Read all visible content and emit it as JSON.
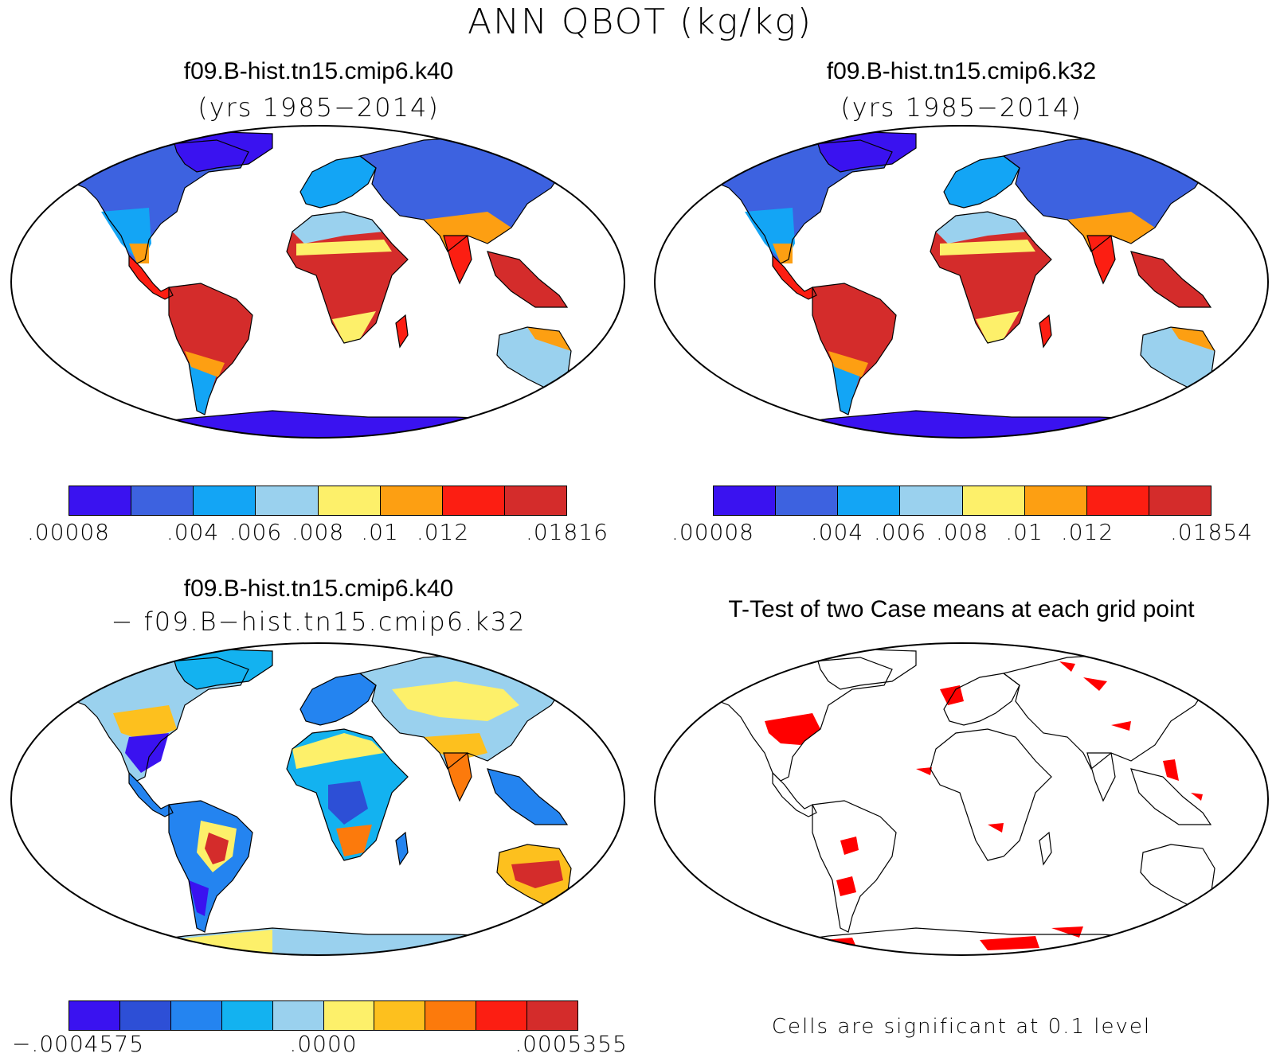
{
  "title": "ANN QBOT (kg/kg)",
  "panels": {
    "top_left": {
      "title": "f09.B-hist.tn15.cmip6.k40",
      "subtitle": "(yrs 1985−2014)",
      "colorbar": {
        "colors": [
          "#3a12f0",
          "#3d62e0",
          "#13a5f5",
          "#9ad1ee",
          "#fdf06a",
          "#fd9f12",
          "#fc1e12",
          "#d42c2b"
        ],
        "labels": [
          ".00008",
          ".004",
          ".006",
          ".008",
          ".01",
          ".012",
          ".01816"
        ]
      }
    },
    "top_right": {
      "title": "f09.B-hist.tn15.cmip6.k32",
      "subtitle": "(yrs 1985−2014)",
      "colorbar": {
        "colors": [
          "#3a12f0",
          "#3d62e0",
          "#13a5f5",
          "#9ad1ee",
          "#fdf06a",
          "#fd9f12",
          "#fc1e12",
          "#d42c2b"
        ],
        "labels": [
          ".00008",
          ".004",
          ".006",
          ".008",
          ".01",
          ".012",
          ".01854"
        ]
      }
    },
    "bottom_left": {
      "title": "f09.B-hist.tn15.cmip6.k40",
      "subtitle": "− f09.B−hist.tn15.cmip6.k32",
      "colorbar": {
        "colors": [
          "#3a12f0",
          "#2d4fd6",
          "#2484f0",
          "#13b2f0",
          "#9ad1ee",
          "#fdf06a",
          "#fdc01e",
          "#fc7a0c",
          "#fc1e12",
          "#d42c2b"
        ],
        "labels": [
          "−.0004575",
          ".0000",
          ".0005355"
        ]
      }
    },
    "bottom_right": {
      "title": "T-Test of two Case means at each grid point",
      "note": "Cells are significant at 0.1 level",
      "significance_color": "#ff0000"
    }
  }
}
